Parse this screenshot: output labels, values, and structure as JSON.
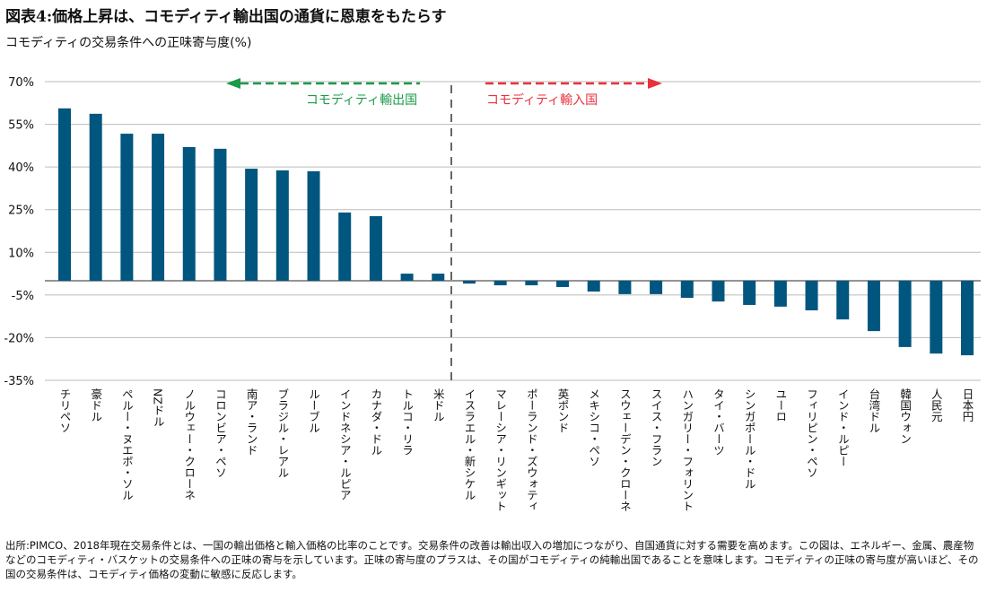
{
  "title": "図表4:価格上昇は、コモディティ輸出国の通貨に恩恵をもたらす",
  "subtitle": "コモディティの交易条件への正味寄与度(%)",
  "note": "出所:PIMCO、2018年現在交易条件とは、一国の輸出価格と輸入価格の比率のことです。交易条件の改善は輸出収入の増加につながり、自国通貨に対する需要を高めます。この図は、エネルギー、金属、農産物などのコモディティ・バスケットの交易条件への正味の寄与を示しています。正味の寄与度のプラスは、その国がコモディティの純輸出国であることを意味します。コモディティの正味の寄与度が高いほど、その国の交易条件は、コモディティ価格の変動に敏感に反応します。",
  "colors": {
    "bar": "#00567f",
    "exporter": "#1a9a4a",
    "importer": "#e8323c",
    "divider": "#666666"
  },
  "chart_data": {
    "type": "bar",
    "ylim": [
      -35,
      70
    ],
    "yticks": [
      70,
      55,
      40,
      25,
      10,
      -5,
      -20,
      -35
    ],
    "ytick_labels": [
      "70%",
      "55%",
      "40%",
      "25%",
      "10%",
      "-5%",
      "-20%",
      "-35%"
    ],
    "grid": true,
    "annotations": {
      "exporters": "コモディティ輸出国",
      "importers": "コモディティ輸入国"
    },
    "categories": [
      "チリペソ",
      "豪ドル",
      "ペルー・ヌエボ・ソル",
      "NZドル",
      "ノルウェー・クローネ",
      "コロンビア・ペソ",
      "南ア・ランド",
      "ブラジル・レアル",
      "ルーブル",
      "インドネシア・ルピア",
      "カナダ・ドル",
      "トルコ・リラ",
      "米ドル",
      "イスラエル・新シケル",
      "マレーシア・リンギット",
      "ポーランド・ズウォティ",
      "英ポンド",
      "メキシコ・ペソ",
      "スウェーデン・クローネ",
      "スイス・フラン",
      "ハンガリー・フォリント",
      "タイ・バーツ",
      "シンガポール・ドル",
      "ユーロ",
      "フィリピン・ペソ",
      "インド・ルピー",
      "台湾ドル",
      "韓国ウォン",
      "人民元",
      "日本円"
    ],
    "values": [
      60.6,
      58.7,
      51.7,
      51.7,
      47.0,
      46.4,
      39.4,
      38.8,
      38.5,
      24.0,
      22.7,
      2.5,
      2.5,
      -1.0,
      -1.6,
      -1.6,
      -2.2,
      -3.8,
      -4.7,
      -4.7,
      -6.0,
      -7.3,
      -8.5,
      -9.1,
      -10.4,
      -13.6,
      -17.7,
      -23.3,
      -25.6,
      -26.2
    ]
  }
}
